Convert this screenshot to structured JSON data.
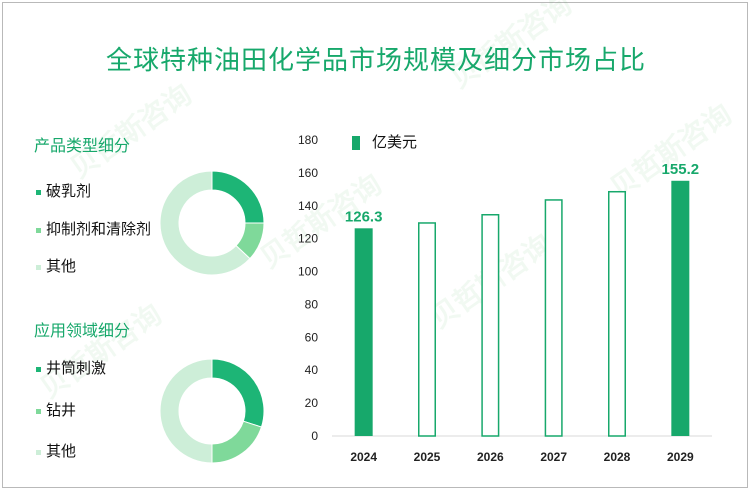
{
  "title": "全球特种油田化学品市场规模及细分市场占比",
  "colors": {
    "accent": "#17a86b",
    "mid": "#7fd99a",
    "light": "#cdeed8"
  },
  "watermark": "贝哲斯咨询",
  "donut1": {
    "title": "产品类型细分",
    "items": [
      {
        "label": "破乳剂",
        "share": 0.25,
        "color": "#1db576"
      },
      {
        "label": "抑制剂和清除剂",
        "share": 0.12,
        "color": "#7fd99a"
      },
      {
        "label": "其他",
        "share": 0.63,
        "color": "#cdeed8"
      }
    ]
  },
  "donut2": {
    "title": "应用领域细分",
    "items": [
      {
        "label": "井筒刺激",
        "share": 0.3,
        "color": "#1db576"
      },
      {
        "label": "钻井",
        "share": 0.2,
        "color": "#7fd99a"
      },
      {
        "label": "其他",
        "share": 0.5,
        "color": "#cdeed8"
      }
    ]
  },
  "chart_data": {
    "type": "bar",
    "categories": [
      "2024",
      "2025",
      "2026",
      "2027",
      "2028",
      "2029"
    ],
    "series": [
      {
        "name": "亿美元",
        "values": [
          126.3,
          130,
          135,
          144,
          149,
          155.2
        ]
      }
    ],
    "filled": [
      true,
      false,
      false,
      false,
      false,
      true
    ],
    "data_labels": [
      {
        "index": 0,
        "text": "126.3"
      },
      {
        "index": 5,
        "text": "155.2"
      }
    ],
    "ylim": [
      0,
      180
    ],
    "yticks": [
      "0",
      "20",
      "40",
      "60",
      "80",
      "100",
      "120",
      "140",
      "160",
      "180"
    ],
    "grid": false,
    "legend": "top-left"
  }
}
